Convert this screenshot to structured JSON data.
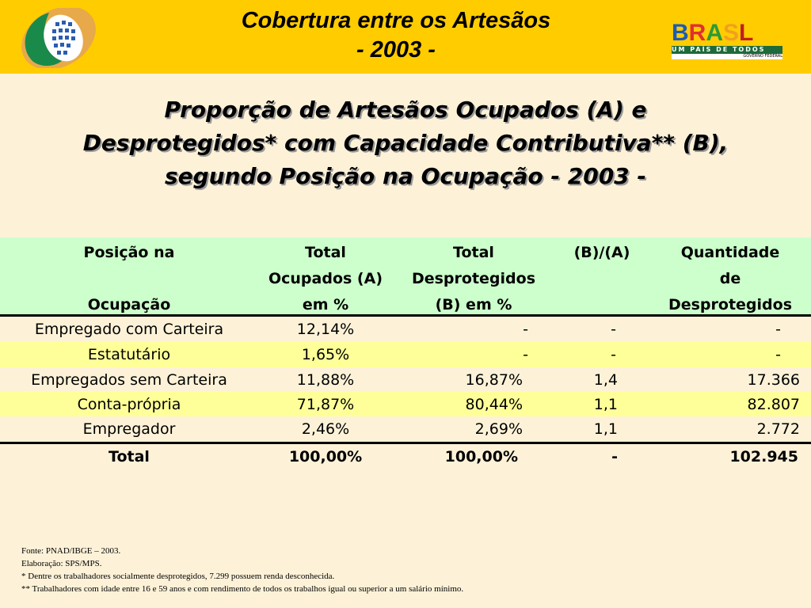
{
  "header": {
    "title_line1": "Cobertura entre os Artesãos",
    "title_line2": "- 2003 -",
    "logo_right_text": "BRASIL",
    "logo_right_slogan": "UM PAÍS DE TODOS",
    "logo_right_sub": "GOVERNO FEDERAL"
  },
  "main_title": {
    "line1": "Proporção de Artesãos Ocupados (A) e",
    "line2": "Desprotegidos* com Capacidade Contributiva** (B),",
    "line3": "segundo Posição na Ocupação - 2003 -"
  },
  "table": {
    "headers": [
      {
        "l1": "Posição na",
        "l2": "",
        "l3": "Ocupação"
      },
      {
        "l1": "Total",
        "l2": "Ocupados (A)",
        "l3": "em %"
      },
      {
        "l1": "Total",
        "l2": "Desprotegidos",
        "l3": "(B) em %"
      },
      {
        "l1": "(B)/(A)",
        "l2": "",
        "l3": ""
      },
      {
        "l1": "Quantidade",
        "l2": "de",
        "l3": "Desprotegidos"
      }
    ],
    "rows": [
      [
        "Empregado com Carteira",
        "12,14%",
        "-",
        "-",
        "-"
      ],
      [
        "Estatutário",
        "1,65%",
        "-",
        "-",
        "-"
      ],
      [
        "Empregados sem Carteira",
        "11,88%",
        "16,87%",
        "1,4",
        "17.366"
      ],
      [
        "Conta-própria",
        "71,87%",
        "80,44%",
        "1,1",
        "82.807"
      ],
      [
        "Empregador",
        "2,46%",
        "2,69%",
        "1,1",
        "2.772"
      ]
    ],
    "total": [
      "Total",
      "100,00%",
      "100,00%",
      "-",
      "102.945"
    ]
  },
  "footer": {
    "source": "Fonte: PNAD/IBGE – 2003.",
    "elab": "Elaboração: SPS/MPS.",
    "note1": "* Dentre os trabalhadores socialmente desprotegidos, 7.299 possuem renda desconhecida.",
    "note2": "** Trabalhadores com idade entre 16 e 59 anos e com rendimento de todos os trabalhos igual ou superior a um salário mínimo."
  },
  "colors": {
    "header": "#ffcc00",
    "bg": "#fdf2d8",
    "table_header": "#ccffcc",
    "row_alt": "#ffff99"
  }
}
